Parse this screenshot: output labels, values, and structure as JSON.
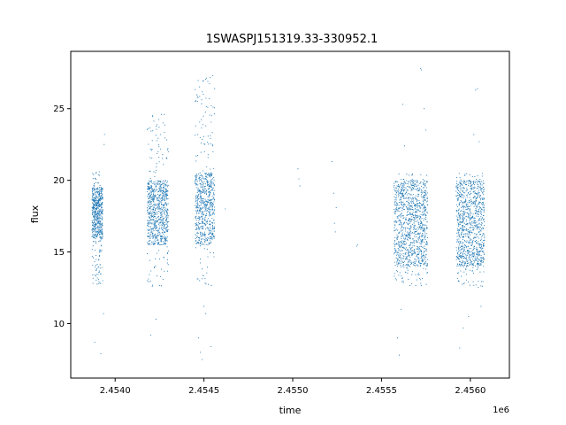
{
  "chart_data": {
    "type": "scatter",
    "title": "1SWASPJ151319.33-330952.1",
    "xlabel": "time",
    "ylabel": "flux",
    "x_offset_label": "1e6",
    "x_tick_labels": [
      "2.4540",
      "2.4545",
      "2.4550",
      "2.4555",
      "2.4560"
    ],
    "x_ticks": [
      2454000,
      2454500,
      2455000,
      2455500,
      2456000
    ],
    "y_ticks": [
      10,
      15,
      20,
      25
    ],
    "xlim": [
      2453750,
      2456220
    ],
    "ylim": [
      6.2,
      29.0
    ],
    "grid": false,
    "marker_color": "#1f77b4",
    "series": [
      {
        "clusters": [
          {
            "x_range": [
              2453870,
              2453930
            ],
            "y_core": [
              16.0,
              19.5
            ],
            "y_spread": [
              12.7,
              20.6
            ],
            "density": 600
          },
          {
            "x_range": [
              2454180,
              2454300
            ],
            "y_core": [
              15.5,
              20.0
            ],
            "y_spread": [
              12.6,
              24.6
            ],
            "density": 800
          },
          {
            "x_range": [
              2454450,
              2454560
            ],
            "y_core": [
              15.5,
              20.5
            ],
            "y_spread": [
              12.6,
              27.2
            ],
            "density": 700
          },
          {
            "x_range": [
              2455570,
              2455760
            ],
            "y_core": [
              14.0,
              20.0
            ],
            "y_spread": [
              12.6,
              20.5
            ],
            "density": 1100
          },
          {
            "x_range": [
              2455920,
              2456080
            ],
            "y_core": [
              14.0,
              20.0
            ],
            "y_spread": [
              12.5,
              20.5
            ],
            "density": 1000
          }
        ],
        "outliers": [
          [
            2453885,
            8.7
          ],
          [
            2453920,
            7.9
          ],
          [
            2453935,
            10.7
          ],
          [
            2453940,
            23.2
          ],
          [
            2453938,
            22.5
          ],
          [
            2454200,
            9.2
          ],
          [
            2454230,
            10.3
          ],
          [
            2454260,
            24.6
          ],
          [
            2454270,
            24.0
          ],
          [
            2454300,
            22.0
          ],
          [
            2454470,
            9.0
          ],
          [
            2454480,
            8.0
          ],
          [
            2454490,
            7.5
          ],
          [
            2454500,
            11.2
          ],
          [
            2454510,
            10.7
          ],
          [
            2454540,
            8.4
          ],
          [
            2454550,
            27.3
          ],
          [
            2454560,
            26.4
          ],
          [
            2454530,
            25.7
          ],
          [
            2454545,
            24.5
          ],
          [
            2454620,
            18.0
          ],
          [
            2455030,
            20.8
          ],
          [
            2455035,
            20.1
          ],
          [
            2455040,
            19.6
          ],
          [
            2455220,
            21.3
          ],
          [
            2455230,
            19.1
          ],
          [
            2455235,
            17.0
          ],
          [
            2455240,
            16.4
          ],
          [
            2455245,
            18.1
          ],
          [
            2455360,
            15.4
          ],
          [
            2455365,
            15.5
          ],
          [
            2455590,
            9.0
          ],
          [
            2455600,
            7.8
          ],
          [
            2455610,
            11.0
          ],
          [
            2455620,
            25.3
          ],
          [
            2455630,
            22.4
          ],
          [
            2455720,
            27.8
          ],
          [
            2455725,
            27.7
          ],
          [
            2455740,
            25.0
          ],
          [
            2455750,
            23.5
          ],
          [
            2455940,
            8.3
          ],
          [
            2455960,
            9.7
          ],
          [
            2455990,
            10.5
          ],
          [
            2456030,
            26.3
          ],
          [
            2456040,
            26.4
          ],
          [
            2456020,
            23.2
          ],
          [
            2456050,
            22.7
          ],
          [
            2456060,
            11.2
          ]
        ]
      }
    ]
  }
}
